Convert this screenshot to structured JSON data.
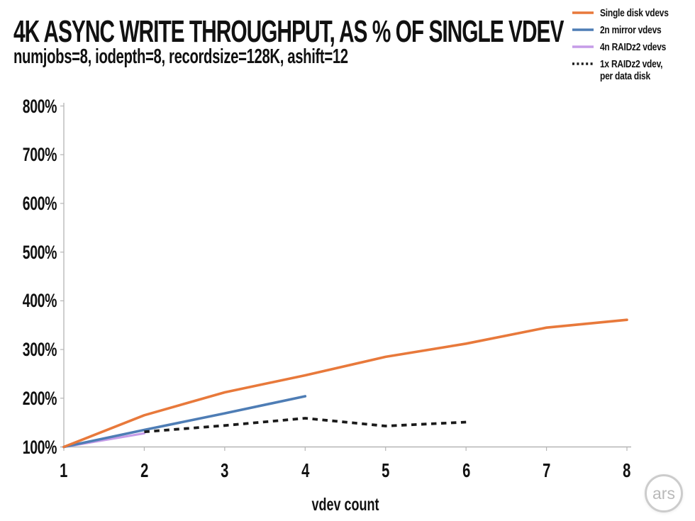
{
  "header": {
    "title": "4K ASYNC WRITE THROUGHPUT, AS % OF SINGLE VDEV",
    "subtitle": "numjobs=8, iodepth=8, recordsize=128K, ashift=12"
  },
  "legend": {
    "items": [
      {
        "label": "Single disk vdevs",
        "color": "#E8793B",
        "style": "solid"
      },
      {
        "label": "2n mirror vdevs",
        "color": "#4E7DB5",
        "style": "solid"
      },
      {
        "label": "4n RAIDz2 vdevs",
        "color": "#C59CE8",
        "style": "solid"
      },
      {
        "label": "1x RAIDz2 vdev, per data disk",
        "color": "#1A1A1A",
        "style": "dotted"
      }
    ]
  },
  "chart_data": {
    "type": "line",
    "title": "4K ASYNC WRITE THROUGHPUT, AS % OF SINGLE VDEV",
    "subtitle": "numjobs=8, iodepth=8, recordsize=128K, ashift=12",
    "xlabel": "vdev count",
    "ylabel": "",
    "xlim": [
      1,
      8
    ],
    "ylim": [
      100,
      800
    ],
    "grid": false,
    "legend_position": "top-right",
    "x_ticks": [
      {
        "label": "1",
        "value": 1
      },
      {
        "label": "2",
        "value": 2
      },
      {
        "label": "3",
        "value": 3
      },
      {
        "label": "4",
        "value": 4
      },
      {
        "label": "5",
        "value": 5
      },
      {
        "label": "6",
        "value": 6
      },
      {
        "label": "7",
        "value": 7
      },
      {
        "label": "8",
        "value": 8
      }
    ],
    "y_ticks": [
      {
        "label": "100%",
        "value": 100
      },
      {
        "label": "200%",
        "value": 200
      },
      {
        "label": "300%",
        "value": 300
      },
      {
        "label": "400%",
        "value": 400
      },
      {
        "label": "500%",
        "value": 500
      },
      {
        "label": "600%",
        "value": 600
      },
      {
        "label": "700%",
        "value": 700
      },
      {
        "label": "800%",
        "value": 800
      }
    ],
    "series": [
      {
        "name": "4n RAIDz2 vdevs",
        "color": "#C59CE8",
        "style": "solid",
        "width": 3.2,
        "x": [
          1,
          2
        ],
        "values": [
          100,
          128
        ]
      },
      {
        "name": "2n mirror vdevs",
        "color": "#4E7DB5",
        "style": "solid",
        "width": 3.6,
        "x": [
          1,
          2,
          3,
          4
        ],
        "values": [
          100,
          135,
          169,
          204
        ]
      },
      {
        "name": "Single disk vdevs",
        "color": "#E8793B",
        "style": "solid",
        "width": 3.6,
        "x": [
          1,
          2,
          3,
          4,
          5,
          6,
          7,
          8
        ],
        "values": [
          100,
          165,
          212,
          247,
          285,
          312,
          345,
          361
        ]
      },
      {
        "name": "1x RAIDz2 vdev, per data disk",
        "color": "#1A1A1A",
        "style": "dotted",
        "width": 3.8,
        "x": [
          2,
          3,
          4,
          5,
          6
        ],
        "values": [
          131,
          144,
          159,
          143,
          151
        ]
      }
    ]
  },
  "footer": {
    "logo_text": "ars"
  },
  "colors": {
    "axis": "#9c9c9c",
    "baseline": "#b5b5b5",
    "tick": "#b5b5b5",
    "text": "#111111"
  }
}
